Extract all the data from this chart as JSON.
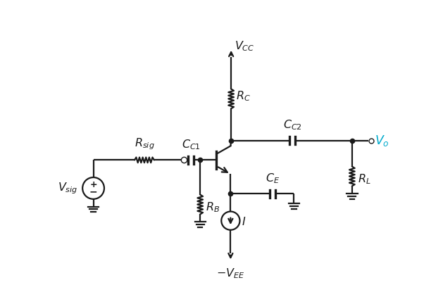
{
  "bg_color": "#ffffff",
  "line_color": "#1a1a1a",
  "text_color": "#1a1a1a",
  "cyan_color": "#00aacc",
  "figsize": [
    6.29,
    4.32
  ],
  "dpi": 100,
  "lw": 1.6,
  "lw_thick": 2.4
}
